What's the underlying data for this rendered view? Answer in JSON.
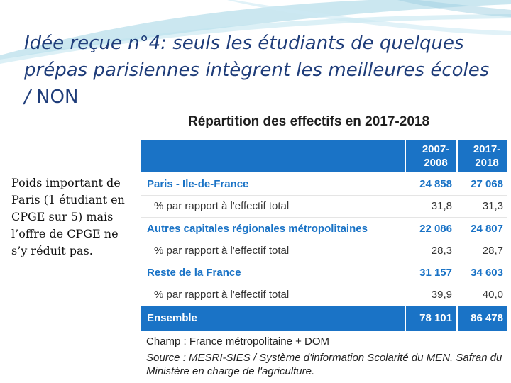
{
  "slide": {
    "title": "Idée reçue n°4: seuls les étudiants de quelques prépas parisiennes intègrent les meilleures écoles / ",
    "title_answer": "NON",
    "body_text": "Poids important de Paris (1 étudiant en CPGE sur 5) mais l’offre de CPGE ne s’y réduit pas.",
    "colors": {
      "title": "#1f3d7a",
      "table_blue": "#1a73c6",
      "swoosh": "#a9d7e6"
    }
  },
  "table": {
    "title": "Répartition des effectifs en 2017-2018",
    "columns": [
      "2007-\n2008",
      "2017-\n2018"
    ],
    "rows": [
      {
        "label": "Paris - Ile-de-France",
        "v1": "24 858",
        "v2": "27 068",
        "kind": "main"
      },
      {
        "label": "% par rapport à l'effectif total",
        "v1": "31,8",
        "v2": "31,3",
        "kind": "sub"
      },
      {
        "label": "Autres capitales régionales métropolitaines",
        "v1": "22 086",
        "v2": "24 807",
        "kind": "main"
      },
      {
        "label": "% par rapport à l'effectif total",
        "v1": "28,3",
        "v2": "28,7",
        "kind": "sub"
      },
      {
        "label": "Reste de la France",
        "v1": "31 157",
        "v2": "34 603",
        "kind": "main"
      },
      {
        "label": "% par rapport à l'effectif total",
        "v1": "39,9",
        "v2": "40,0",
        "kind": "sub"
      }
    ],
    "total": {
      "label": "Ensemble",
      "v1": "78 101",
      "v2": "86 478"
    },
    "champ": "Champ : France métropolitaine + DOM",
    "source": "Source : MESRI-SIES / Système d'information Scolarité du MEN, Safran du Ministère en charge de l'agriculture."
  }
}
